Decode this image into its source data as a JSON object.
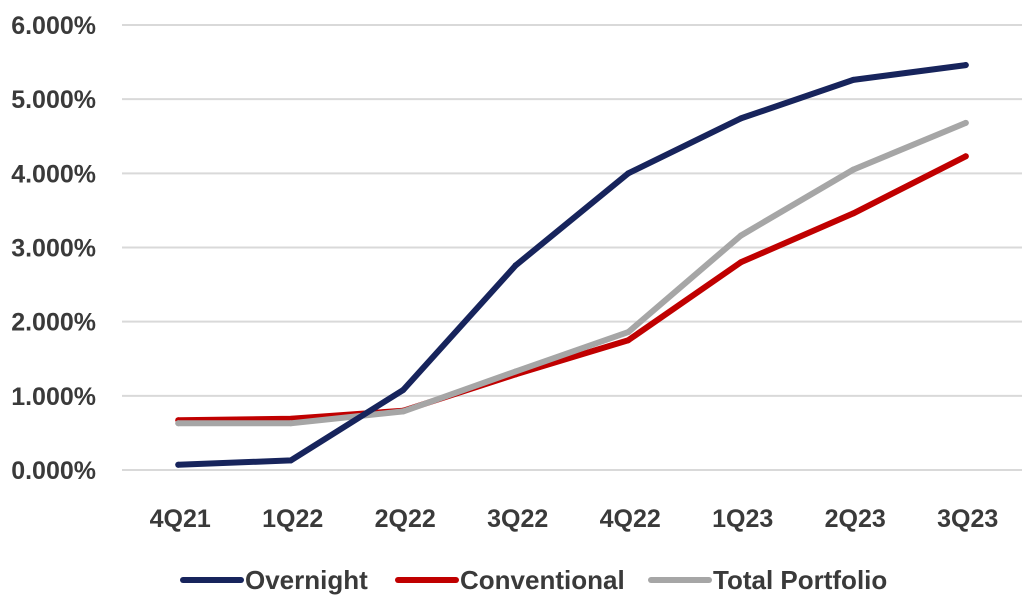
{
  "chart_data": {
    "type": "line",
    "categories": [
      "4Q21",
      "1Q22",
      "2Q22",
      "3Q22",
      "4Q22",
      "1Q23",
      "2Q23",
      "3Q23"
    ],
    "y_tick_labels": [
      "0.000%",
      "1.000%",
      "2.000%",
      "3.000%",
      "4.000%",
      "5.000%",
      "6.000%"
    ],
    "ylim": [
      0,
      6
    ],
    "y_unit": "%",
    "grid": true,
    "legend_position": "bottom",
    "series": [
      {
        "name": "Overnight",
        "color": "#17245c",
        "values": [
          0.07,
          0.13,
          1.08,
          2.76,
          4.0,
          4.74,
          5.26,
          5.46
        ]
      },
      {
        "name": "Conventional",
        "color": "#c00000",
        "values": [
          0.67,
          0.69,
          0.8,
          1.29,
          1.75,
          2.8,
          3.46,
          4.23
        ]
      },
      {
        "name": "Total Portfolio",
        "color": "#a6a6a6",
        "values": [
          0.63,
          0.63,
          0.79,
          1.33,
          1.86,
          3.16,
          4.05,
          4.68
        ]
      }
    ]
  }
}
